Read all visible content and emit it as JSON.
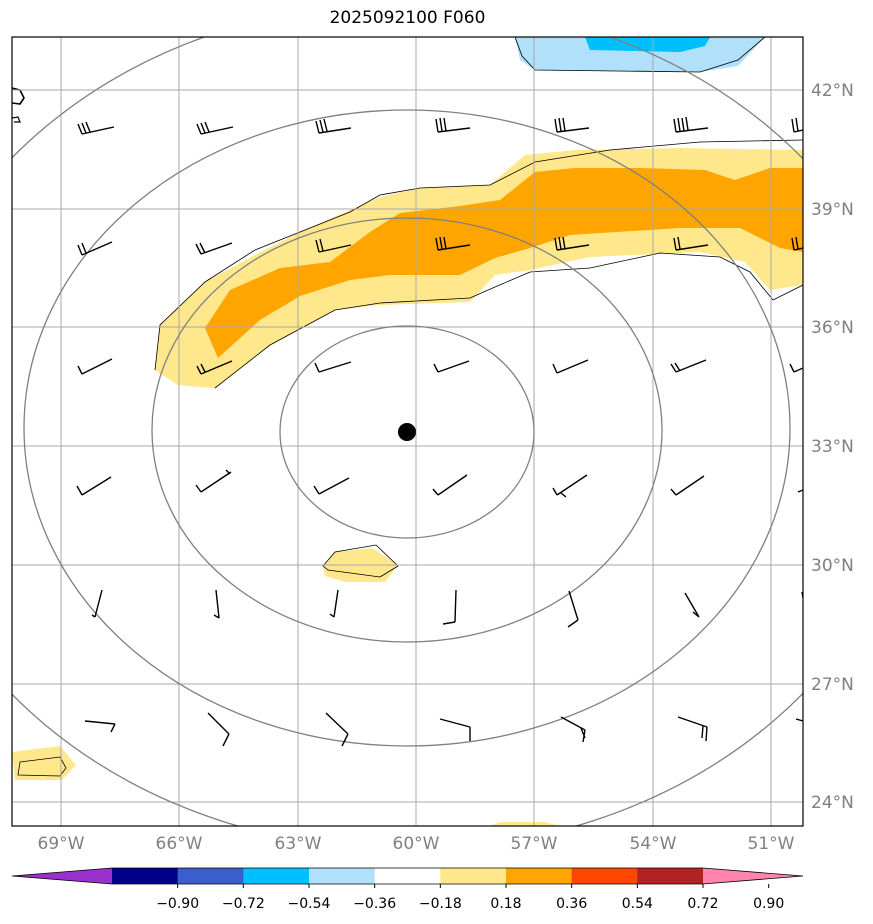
{
  "title": "2025092100 F060",
  "map": {
    "lon_labels": [
      "69°W",
      "66°W",
      "63°W",
      "60°W",
      "57°W",
      "54°W",
      "51°W"
    ],
    "lat_labels": [
      "42°N",
      "39°N",
      "36°N",
      "33°N",
      "30°N",
      "27°N",
      "24°N"
    ],
    "center_marker": "storm-center"
  },
  "colorbar": {
    "labels": [
      "−0.90",
      "−0.72",
      "−0.54",
      "−0.36",
      "−0.18",
      "0.18",
      "0.36",
      "0.54",
      "0.72",
      "0.90"
    ],
    "colors": [
      "#9932cc",
      "#00008b",
      "#3a5fcd",
      "#00bfff",
      "#b0e0fa",
      "#ffffff",
      "#ffe88c",
      "#ffa500",
      "#ff4500",
      "#b22222",
      "#ff85b0"
    ]
  },
  "colors": {
    "fill_light_yellow": "#ffe88c",
    "fill_orange": "#ffa500",
    "fill_light_blue": "#b0e0fa",
    "fill_blue": "#00bfff",
    "grid": "#a9a9a9",
    "circles": "#808080"
  }
}
